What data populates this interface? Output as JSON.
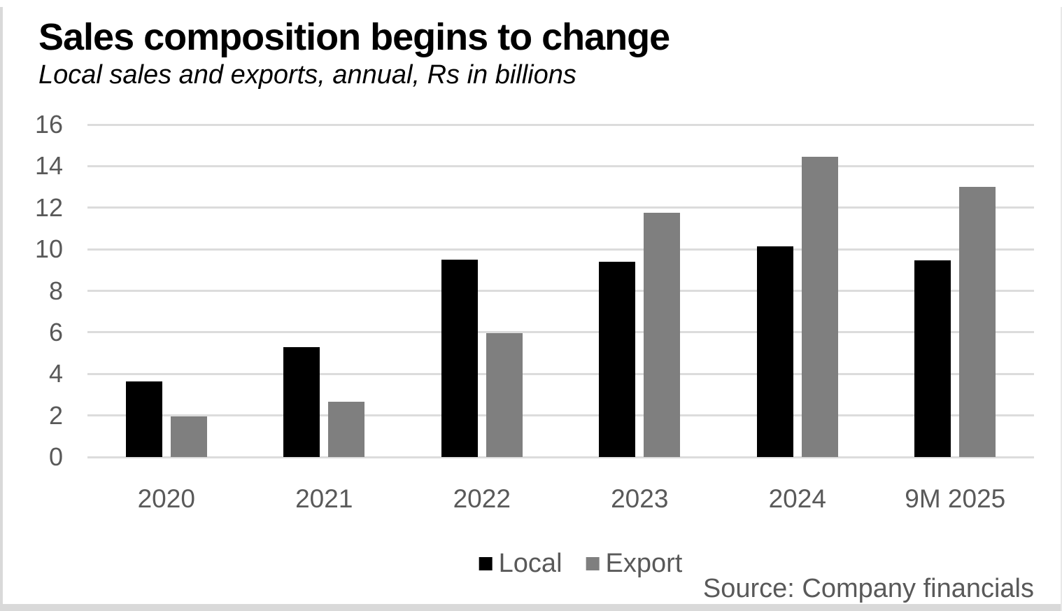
{
  "header": {
    "title": "Sales composition begins to change",
    "subtitle": "Local sales and exports, annual, Rs in billions"
  },
  "chart_data": {
    "type": "bar",
    "title": "Sales composition begins to change",
    "subtitle": "Local sales and exports, annual, Rs in billions",
    "categories": [
      "2020",
      "2021",
      "2022",
      "2023",
      "2024",
      "9M 2025"
    ],
    "series": [
      {
        "name": "Local",
        "color": "#000000",
        "values": [
          3.65,
          5.3,
          9.5,
          9.4,
          10.15,
          9.45
        ]
      },
      {
        "name": "Export",
        "color": "#7f7f7f",
        "values": [
          1.95,
          2.65,
          5.95,
          11.75,
          14.45,
          13.0
        ]
      }
    ],
    "xlabel": "",
    "ylabel": "",
    "ylim": [
      0,
      16
    ],
    "yticks": [
      0,
      2,
      4,
      6,
      8,
      10,
      12,
      14,
      16
    ],
    "grid": true,
    "legend_position": "bottom"
  },
  "footer": {
    "source": "Source: Company financials"
  },
  "style": {
    "grid_color": "#dcdcdc",
    "axis_text_color": "#595959",
    "local_bar_color": "#000000",
    "export_bar_color": "#7f7f7f"
  }
}
